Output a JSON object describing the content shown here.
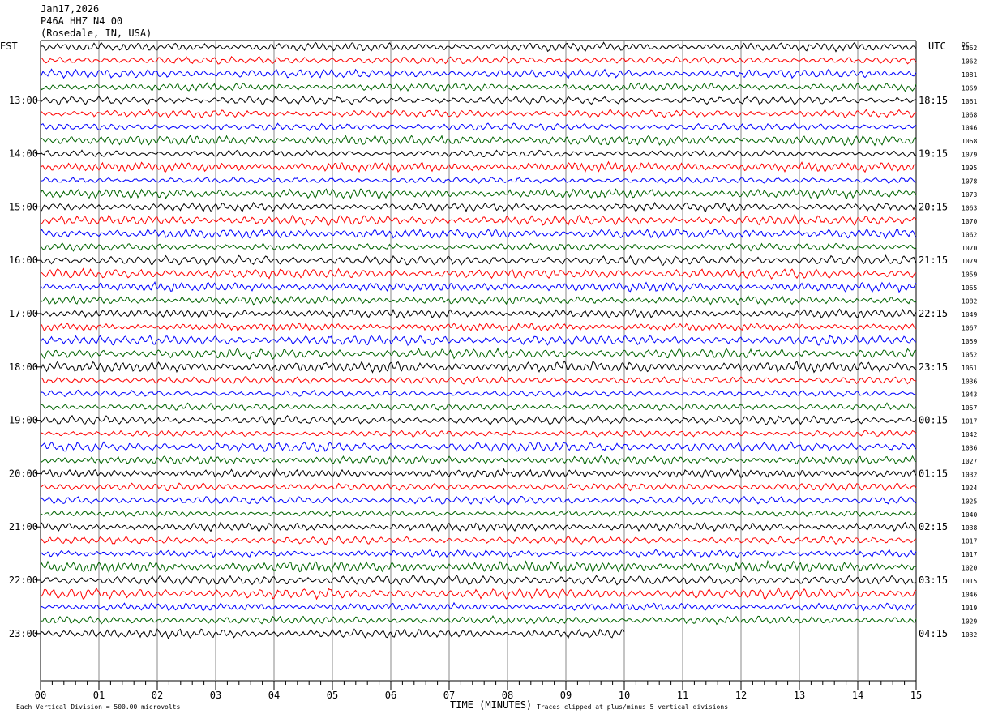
{
  "header": {
    "date": "Jan17,2026",
    "station": "P46A HHZ N4 00",
    "location": "(Rosedale, IN, USA)"
  },
  "left_tz": "EST",
  "right_tz": "UTC",
  "dc_label": "DC",
  "footer": {
    "left_note": "Each Vertical Division =  500.00 microvolts",
    "center_note": "Traces clipped at plus/minus 5 vertical divisions"
  },
  "chart_data": {
    "type": "line",
    "xlabel": "TIME (MINUTES)",
    "x_ticks": [
      "00",
      "01",
      "02",
      "03",
      "04",
      "05",
      "06",
      "07",
      "08",
      "09",
      "10",
      "11",
      "12",
      "13",
      "14",
      "15"
    ],
    "xlim": [
      0,
      15
    ],
    "left_time_labels": [
      "13:00",
      "14:00",
      "15:00",
      "16:00",
      "17:00",
      "18:00",
      "19:00",
      "20:00",
      "21:00",
      "22:00",
      "23:00"
    ],
    "right_time_labels": [
      "18:15",
      "19:15",
      "20:15",
      "21:15",
      "22:15",
      "23:15",
      "00:15",
      "01:15",
      "02:15",
      "03:15",
      "04:15"
    ],
    "trace_colors": [
      "#000000",
      "#ff0000",
      "#0000ff",
      "#006400"
    ],
    "dc_offsets": [
      "1062",
      "1062",
      "1081",
      "1069",
      "1061",
      "1068",
      "1046",
      "1068",
      "1079",
      "1095",
      "1078",
      "1073",
      "1063",
      "1070",
      "1062",
      "1070",
      "1079",
      "1059",
      "1065",
      "1082",
      "1049",
      "1067",
      "1059",
      "1052",
      "1061",
      "1036",
      "1043",
      "1057",
      "1017",
      "1042",
      "1036",
      "1027",
      "1032",
      "1024",
      "1025",
      "1040",
      "1038",
      "1017",
      "1017",
      "1020",
      "1015",
      "1046",
      "1019",
      "1029",
      "1032"
    ],
    "last_trace_minutes": 10
  }
}
